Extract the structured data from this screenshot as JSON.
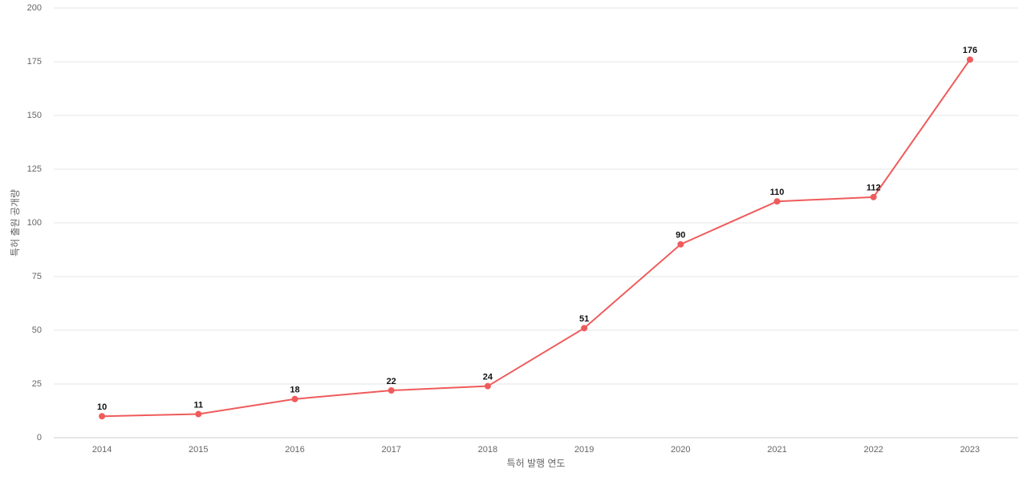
{
  "chart_data": {
    "type": "line",
    "x_label": "특허 발행 연도",
    "y_label": "특허 출원 공개량",
    "categories": [
      "2014",
      "2015",
      "2016",
      "2017",
      "2018",
      "2019",
      "2020",
      "2021",
      "2022",
      "2023"
    ],
    "values": [
      10,
      11,
      18,
      22,
      24,
      51,
      90,
      110,
      112,
      176
    ],
    "color": "#ef5b5b",
    "ylim": [
      0,
      200
    ],
    "yticks": [
      0,
      25,
      50,
      75,
      100,
      125,
      150,
      175,
      200
    ],
    "grid": true
  }
}
